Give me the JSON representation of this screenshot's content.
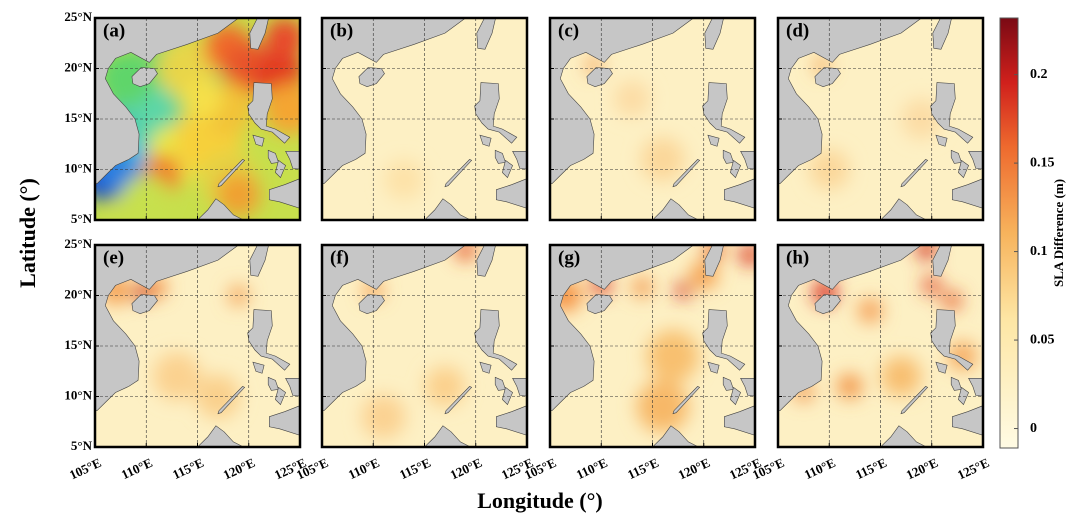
{
  "figure": {
    "panels": [
      "(a)",
      "(b)",
      "(c)",
      "(d)",
      "(e)",
      "(f)",
      "(g)",
      "(h)"
    ],
    "x_axis": {
      "title": "Longitude (°)",
      "lim": [
        105,
        125
      ],
      "ticks": [
        {
          "value": 105,
          "label": "105°E"
        },
        {
          "value": 110,
          "label": "110°E"
        },
        {
          "value": 115,
          "label": "115°E"
        },
        {
          "value": 120,
          "label": "120°E"
        },
        {
          "value": 125,
          "label": "125°E"
        }
      ]
    },
    "y_axis": {
      "title": "Latitude (°)",
      "lim": [
        5,
        25
      ],
      "ticks": [
        {
          "value": 5,
          "label": "5°N"
        },
        {
          "value": 10,
          "label": "10°N"
        },
        {
          "value": 15,
          "label": "15°N"
        },
        {
          "value": 20,
          "label": "20°N"
        },
        {
          "value": 25,
          "label": "25°N"
        }
      ]
    },
    "colorbar": {
      "label": "SLA Difference (m)",
      "lim": [
        -0.011,
        0.232
      ],
      "ticks": [
        0,
        0.05,
        0.1,
        0.15,
        0.2
      ]
    }
  }
}
